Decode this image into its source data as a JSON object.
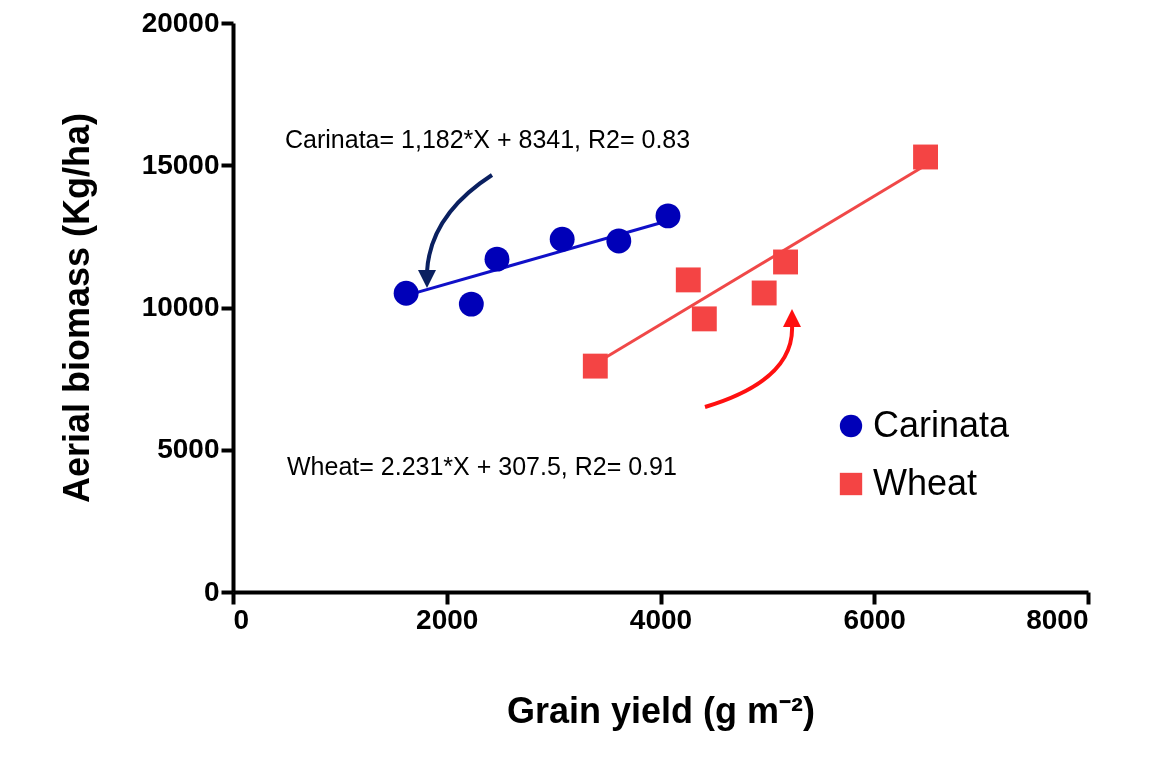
{
  "chart_data": {
    "type": "scatter",
    "xlabel": "Grain yield (g m⁻²)",
    "ylabel": "Aerial biomass (Kg/ha)",
    "xlim": [
      0,
      8000
    ],
    "xticks": [
      0,
      2000,
      4000,
      6000,
      8000
    ],
    "ylim": [
      0,
      20000
    ],
    "yticks": [
      0,
      5000,
      10000,
      15000,
      20000
    ],
    "legend": "right",
    "annotations": [
      "Carinata= 1,182*X + 8341, R2= 0.83",
      "Wheat= 2.231*X + 307.5, R2= 0.91"
    ],
    "series": [
      {
        "type": "line",
        "color": "#1010c8",
        "marker": "none",
        "x": [
          1600,
          4070
        ],
        "values": [
          10400,
          13050
        ]
      },
      {
        "type": "line",
        "color": "#f04848",
        "marker": "none",
        "x": [
          3400,
          6480
        ],
        "values": [
          8050,
          15000
        ]
      },
      {
        "name": "Carinata",
        "color": "#0000b8",
        "marker": "circle",
        "x": [
          1620,
          2230,
          2470,
          3080,
          3610,
          4070
        ],
        "values": [
          10500,
          10120,
          11700,
          12400,
          12340,
          13220
        ]
      },
      {
        "name": "Wheat",
        "color": "#f44444",
        "marker": "square",
        "x": [
          3390,
          4260,
          4410,
          4970,
          5170,
          6480
        ],
        "values": [
          7940,
          10970,
          9600,
          10510,
          11600,
          15290
        ]
      }
    ]
  }
}
